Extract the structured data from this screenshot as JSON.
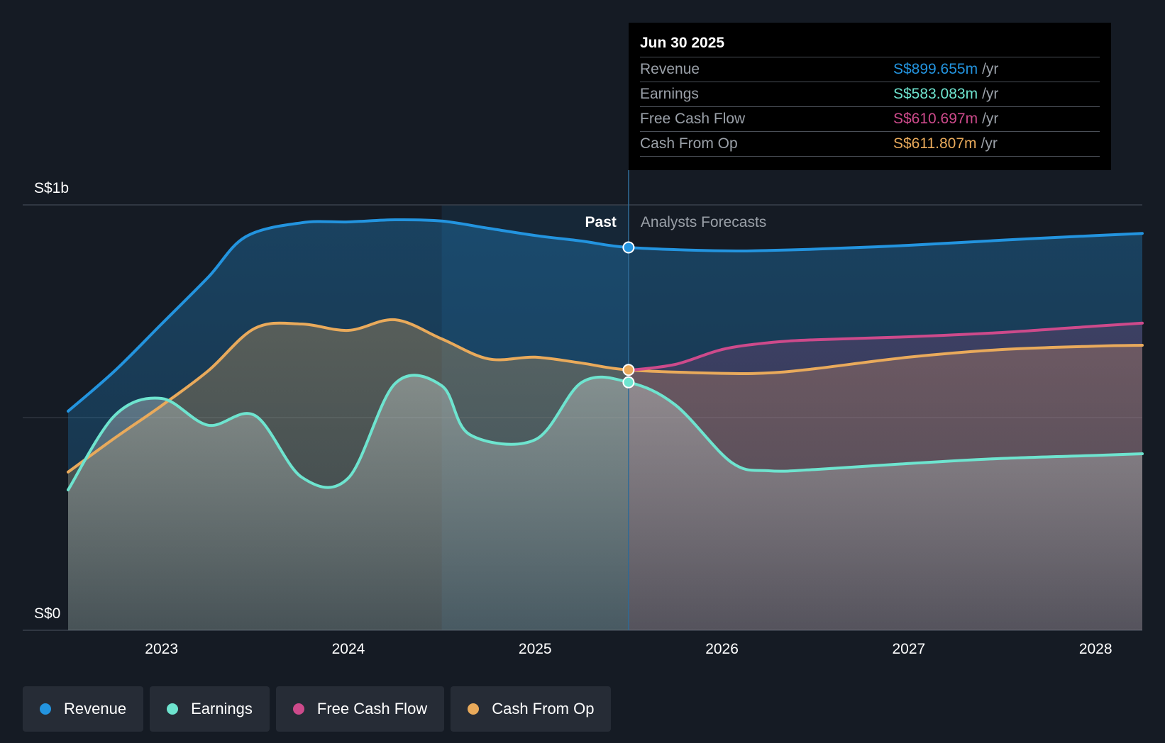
{
  "chart_data": {
    "type": "area",
    "y_axis": {
      "tick_labels": [
        "S$0",
        "S$1b"
      ],
      "ylim": [
        0,
        1000
      ]
    },
    "x_axis": {
      "tick_labels": [
        "2023",
        "2024",
        "2025",
        "2026",
        "2027",
        "2028"
      ],
      "xlim": [
        2022.5,
        2028.25
      ]
    },
    "sections": {
      "past_label": "Past",
      "forecast_label": "Analysts Forecasts",
      "divider_x": 2025.5
    },
    "series": [
      {
        "name": "Revenue",
        "color": "#2394df",
        "points": [
          [
            2022.5,
            515
          ],
          [
            2022.75,
            610
          ],
          [
            2023,
            720
          ],
          [
            2023.25,
            830
          ],
          [
            2023.45,
            925
          ],
          [
            2023.75,
            958
          ],
          [
            2024,
            960
          ],
          [
            2024.25,
            965
          ],
          [
            2024.5,
            962
          ],
          [
            2024.75,
            945
          ],
          [
            2025,
            928
          ],
          [
            2025.25,
            915
          ],
          [
            2025.5,
            900
          ],
          [
            2026,
            892
          ],
          [
            2026.25,
            893
          ],
          [
            2026.5,
            896
          ],
          [
            2027,
            905
          ],
          [
            2027.5,
            917
          ],
          [
            2028,
            928
          ],
          [
            2028.25,
            933
          ]
        ]
      },
      {
        "name": "Cash From Op",
        "color": "#e9aa5b",
        "points": [
          [
            2022.5,
            372
          ],
          [
            2022.75,
            452
          ],
          [
            2023,
            528
          ],
          [
            2023.25,
            610
          ],
          [
            2023.5,
            710
          ],
          [
            2023.75,
            720
          ],
          [
            2024,
            705
          ],
          [
            2024.25,
            730
          ],
          [
            2024.5,
            685
          ],
          [
            2024.75,
            638
          ],
          [
            2025,
            642
          ],
          [
            2025.25,
            628
          ],
          [
            2025.5,
            612
          ],
          [
            2026,
            604
          ],
          [
            2026.25,
            605
          ],
          [
            2026.5,
            615
          ],
          [
            2027,
            642
          ],
          [
            2027.5,
            660
          ],
          [
            2028,
            668
          ],
          [
            2028.25,
            670
          ]
        ]
      },
      {
        "name": "Free Cash Flow",
        "color": "#cd4a8b",
        "points": [
          [
            2025.5,
            611
          ],
          [
            2025.75,
            625
          ],
          [
            2026,
            660
          ],
          [
            2026.25,
            676
          ],
          [
            2026.5,
            683
          ],
          [
            2027,
            690
          ],
          [
            2027.5,
            700
          ],
          [
            2028,
            715
          ],
          [
            2028.25,
            722
          ]
        ]
      },
      {
        "name": "Earnings",
        "color": "#6ee4cf",
        "points": [
          [
            2022.5,
            330
          ],
          [
            2022.75,
            505
          ],
          [
            2023,
            545
          ],
          [
            2023.25,
            482
          ],
          [
            2023.5,
            505
          ],
          [
            2023.75,
            360
          ],
          [
            2024,
            358
          ],
          [
            2024.25,
            580
          ],
          [
            2024.5,
            575
          ],
          [
            2024.65,
            460
          ],
          [
            2025,
            448
          ],
          [
            2025.25,
            583
          ],
          [
            2025.5,
            583
          ],
          [
            2025.75,
            530
          ],
          [
            2026.05,
            395
          ],
          [
            2026.25,
            375
          ],
          [
            2026.5,
            378
          ],
          [
            2027,
            392
          ],
          [
            2027.5,
            404
          ],
          [
            2028,
            411
          ],
          [
            2028.25,
            415
          ]
        ]
      }
    ]
  },
  "tooltip": {
    "date": "Jun 30 2025",
    "rows": [
      {
        "label": "Revenue",
        "value": "S$899.655m",
        "unit": "/yr",
        "color": "#2394df"
      },
      {
        "label": "Earnings",
        "value": "S$583.083m",
        "unit": "/yr",
        "color": "#6ee4cf"
      },
      {
        "label": "Free Cash Flow",
        "value": "S$610.697m",
        "unit": "/yr",
        "color": "#cd4a8b"
      },
      {
        "label": "Cash From Op",
        "value": "S$611.807m",
        "unit": "/yr",
        "color": "#e9aa5b"
      }
    ]
  },
  "legend": [
    {
      "label": "Revenue",
      "color": "#2394df"
    },
    {
      "label": "Earnings",
      "color": "#6ee4cf"
    },
    {
      "label": "Free Cash Flow",
      "color": "#cd4a8b"
    },
    {
      "label": "Cash From Op",
      "color": "#e9aa5b"
    }
  ]
}
